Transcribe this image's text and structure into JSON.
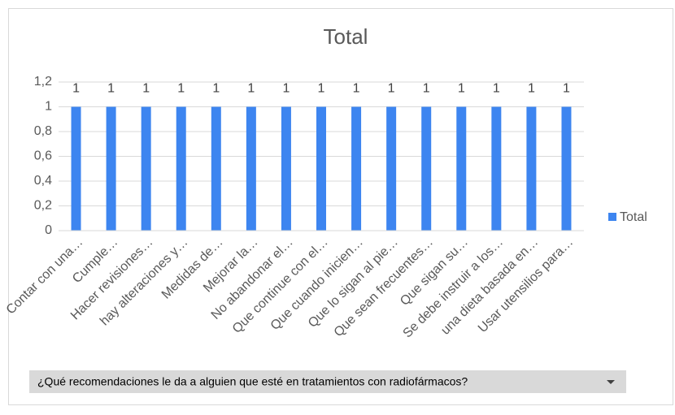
{
  "chart_data": {
    "type": "bar",
    "title": "Total",
    "categories": [
      "Contar con una…",
      "Cumple…",
      "Hacer revisiones…",
      "hay alteraciones y…",
      "Medidas de…",
      "Mejorar la…",
      "No abandonar el…",
      "Que continue con el…",
      "Que cuando inicien…",
      "Que lo sigan al pie…",
      "Que sean frecuentes…",
      "Que sigan su…",
      "Se debe instruir a los…",
      "una dieta basada en…",
      "Usar utensilios para…"
    ],
    "series": [
      {
        "name": "Total",
        "color": "#3d85f0",
        "values": [
          1,
          1,
          1,
          1,
          1,
          1,
          1,
          1,
          1,
          1,
          1,
          1,
          1,
          1,
          1
        ]
      }
    ],
    "ylim": [
      0,
      1.2
    ],
    "yticks": [
      0,
      {
        "value": 0.2,
        "label": "0,2"
      },
      {
        "value": 0.4,
        "label": "0,4"
      },
      {
        "value": 0.6,
        "label": "0,6"
      },
      {
        "value": 0.8,
        "label": "0,8"
      },
      1,
      {
        "value": 1.2,
        "label": "1,2"
      }
    ],
    "grid": true,
    "legend": "right"
  },
  "field_button": "¿Qué recomendaciones le da a alguien que esté en tratamientos con radiofármacos?"
}
